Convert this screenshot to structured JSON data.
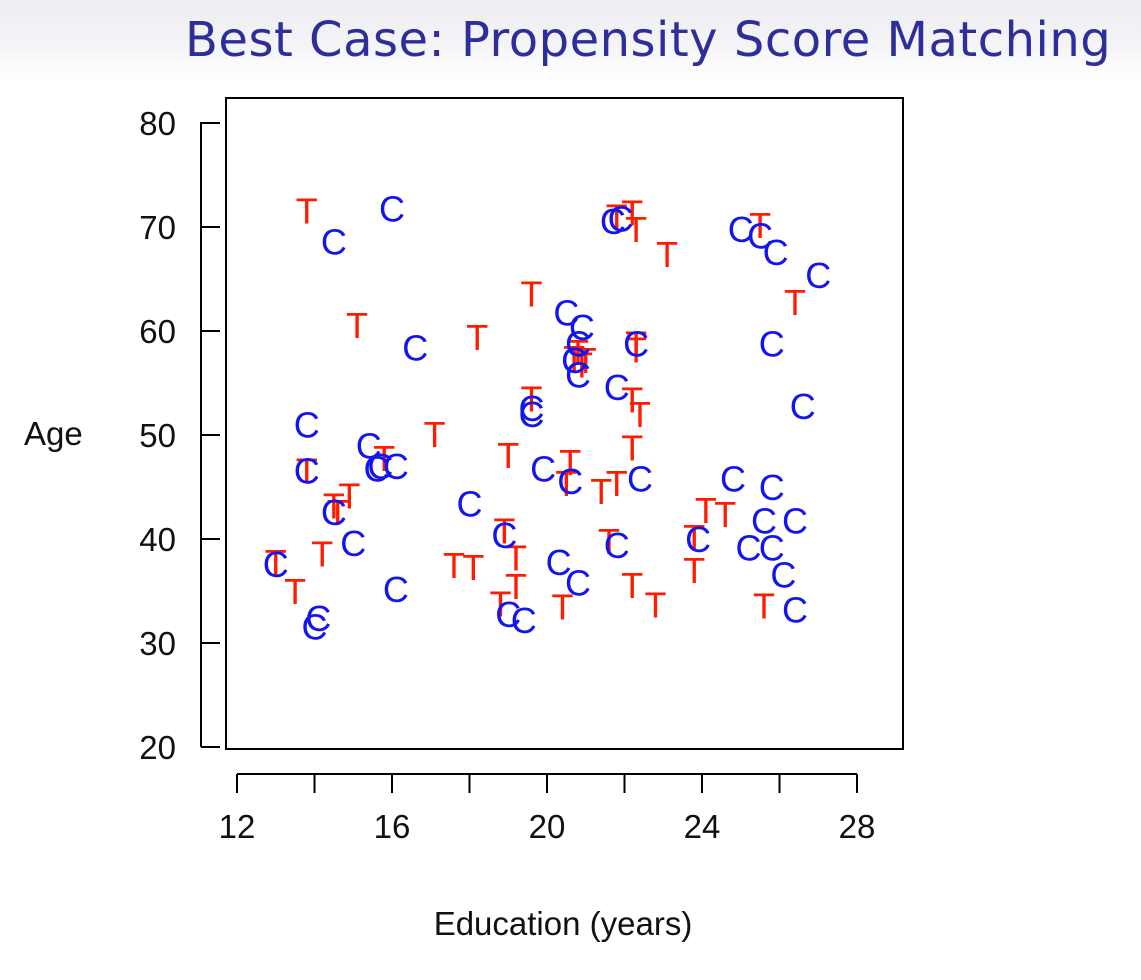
{
  "slide": {
    "title": "Best Case: Propensity Score Matching"
  },
  "chart_data": {
    "type": "scatter",
    "xlabel": "Education (years)",
    "ylabel": "Age",
    "xlim": [
      11.6,
      29.2
    ],
    "ylim": [
      19.8,
      82.6
    ],
    "xticks": [
      12,
      14,
      16,
      18,
      20,
      22,
      24,
      26,
      28
    ],
    "xtick_labels": [
      "12",
      "",
      "16",
      "",
      "20",
      "",
      "24",
      "",
      "28"
    ],
    "yticks": [
      20,
      30,
      40,
      50,
      60,
      70,
      80
    ],
    "ytick_labels": [
      "20",
      "30",
      "40",
      "50",
      "60",
      "70",
      "80"
    ],
    "grid": false,
    "series": [
      {
        "marker": "T",
        "color": "#ff1a00",
        "points": [
          [
            13.8,
            71.6
          ],
          [
            15.1,
            60.6
          ],
          [
            18.2,
            59.4
          ],
          [
            19.6,
            63.6
          ],
          [
            21.8,
            71.0
          ],
          [
            22.2,
            71.4
          ],
          [
            22.3,
            69.8
          ],
          [
            23.1,
            67.4
          ],
          [
            25.5,
            70.2
          ],
          [
            26.4,
            62.8
          ],
          [
            17.1,
            50.1
          ],
          [
            15.8,
            47.8
          ],
          [
            13.8,
            46.6
          ],
          [
            14.5,
            43.2
          ],
          [
            14.6,
            42.6
          ],
          [
            14.9,
            44.2
          ],
          [
            13.0,
            37.8
          ],
          [
            13.5,
            35.0
          ],
          [
            14.2,
            38.6
          ],
          [
            17.6,
            37.5
          ],
          [
            18.1,
            37.3
          ],
          [
            19.0,
            48.1
          ],
          [
            19.6,
            53.5
          ],
          [
            20.7,
            57.4
          ],
          [
            20.8,
            58.0
          ],
          [
            20.9,
            56.8
          ],
          [
            21.0,
            57.2
          ],
          [
            22.3,
            58.8
          ],
          [
            22.3,
            58.2
          ],
          [
            22.2,
            53.4
          ],
          [
            22.4,
            52.0
          ],
          [
            22.2,
            48.8
          ],
          [
            20.6,
            47.4
          ],
          [
            20.5,
            45.4
          ],
          [
            21.4,
            44.6
          ],
          [
            21.8,
            45.4
          ],
          [
            18.9,
            40.8
          ],
          [
            19.2,
            38.2
          ],
          [
            19.2,
            35.5
          ],
          [
            18.8,
            33.8
          ],
          [
            20.4,
            33.5
          ],
          [
            21.6,
            39.8
          ],
          [
            22.2,
            35.6
          ],
          [
            22.8,
            33.7
          ],
          [
            23.8,
            37.0
          ],
          [
            24.1,
            42.8
          ],
          [
            24.6,
            42.4
          ],
          [
            23.8,
            40.2
          ],
          [
            25.6,
            33.6
          ]
        ]
      },
      {
        "marker": "C",
        "color": "#1414ee",
        "points": [
          [
            16.0,
            71.8
          ],
          [
            14.5,
            68.6
          ],
          [
            16.6,
            58.4
          ],
          [
            13.8,
            51.0
          ],
          [
            15.4,
            49.0
          ],
          [
            15.6,
            46.8
          ],
          [
            15.7,
            47.0
          ],
          [
            16.1,
            47.0
          ],
          [
            13.8,
            46.6
          ],
          [
            14.5,
            42.6
          ],
          [
            15.0,
            39.6
          ],
          [
            13.0,
            37.6
          ],
          [
            14.1,
            32.4
          ],
          [
            14.0,
            31.6
          ],
          [
            16.1,
            35.2
          ],
          [
            18.0,
            43.4
          ],
          [
            19.6,
            52.0
          ],
          [
            19.6,
            52.6
          ],
          [
            19.9,
            46.8
          ],
          [
            18.9,
            40.4
          ],
          [
            19.0,
            32.8
          ],
          [
            19.4,
            32.2
          ],
          [
            20.3,
            37.8
          ],
          [
            20.8,
            35.8
          ],
          [
            20.6,
            45.6
          ],
          [
            20.5,
            61.8
          ],
          [
            20.9,
            60.4
          ],
          [
            20.8,
            58.8
          ],
          [
            20.7,
            57.2
          ],
          [
            20.8,
            55.8
          ],
          [
            21.8,
            54.6
          ],
          [
            22.3,
            58.8
          ],
          [
            22.4,
            45.8
          ],
          [
            21.8,
            39.4
          ],
          [
            21.7,
            70.6
          ],
          [
            21.9,
            70.8
          ],
          [
            25.0,
            69.8
          ],
          [
            25.5,
            69.2
          ],
          [
            25.9,
            67.6
          ],
          [
            27.0,
            65.4
          ],
          [
            25.8,
            58.8
          ],
          [
            26.6,
            52.8
          ],
          [
            24.8,
            45.8
          ],
          [
            25.8,
            45.0
          ],
          [
            25.6,
            41.8
          ],
          [
            26.4,
            41.8
          ],
          [
            25.2,
            39.2
          ],
          [
            25.8,
            39.2
          ],
          [
            26.1,
            36.6
          ],
          [
            26.4,
            33.2
          ],
          [
            23.9,
            40.0
          ]
        ]
      }
    ]
  }
}
